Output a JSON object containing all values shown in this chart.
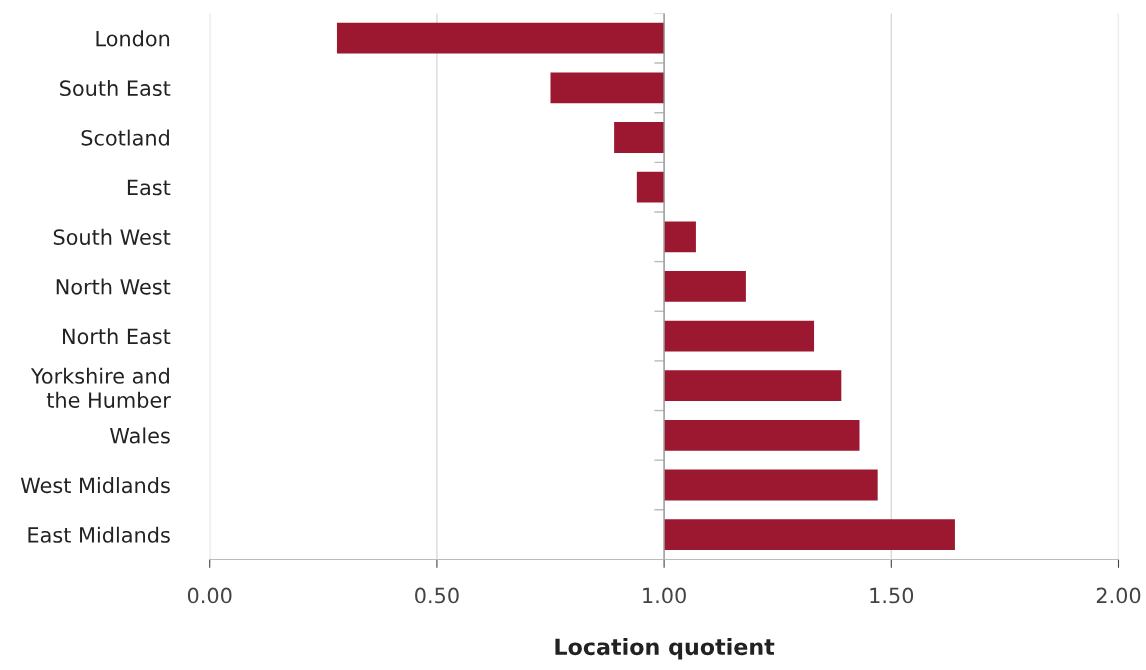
{
  "chart_data": {
    "type": "bar",
    "orientation": "horizontal",
    "xlabel": "Location quotient",
    "categories": [
      "London",
      "South East",
      "Scotland",
      "East",
      "South West",
      "North West",
      "North East",
      "Yorkshire and\nthe Humber",
      "Wales",
      "West Midlands",
      "East Midlands"
    ],
    "base": [
      1,
      1,
      1,
      1,
      1,
      1,
      1,
      1,
      1,
      1,
      1
    ],
    "values": [
      -0.72,
      -0.25,
      -0.11,
      -0.06,
      0.07,
      0.18,
      0.33,
      0.39,
      0.43,
      0.47,
      0.64
    ],
    "color": "#9b1830",
    "xlim": [
      0,
      2
    ],
    "xticks": [
      {
        "value": 0,
        "label": "0.00"
      },
      {
        "value": 0.5,
        "label": "0.50"
      },
      {
        "value": 1,
        "label": "1.00"
      },
      {
        "value": 1.5,
        "label": "1.50"
      },
      {
        "value": 2,
        "label": "2.00"
      }
    ],
    "grid": "x",
    "ref_lines": [
      {
        "axis": "x",
        "value": 1,
        "color": "#999999"
      }
    ]
  }
}
